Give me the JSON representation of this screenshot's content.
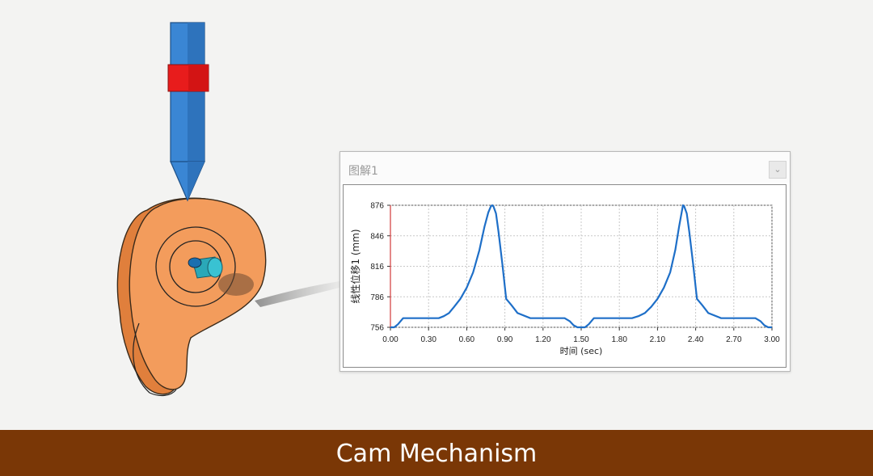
{
  "window": {
    "title": "图解1",
    "button_icon": "window-menu-icon"
  },
  "caption": {
    "text": "Cam Mechanism",
    "background": "#7a3706"
  },
  "colors": {
    "cam": "#f39c5c",
    "follower": "#3a86d4",
    "collar": "#e81c1c",
    "shaft": "#2aa8b8",
    "curve": "#1e6fc8"
  },
  "chart_data": {
    "type": "line",
    "title": "",
    "xlabel": "时间 (sec)",
    "ylabel": "线性位移1 (mm)",
    "xlim": [
      0,
      3
    ],
    "ylim": [
      756,
      876
    ],
    "xticks": [
      "0.00",
      "0.30",
      "0.60",
      "0.90",
      "1.20",
      "1.50",
      "1.80",
      "2.10",
      "2.40",
      "2.70",
      "3.00"
    ],
    "yticks": [
      "756",
      "786",
      "816",
      "846",
      "876"
    ],
    "grid": true,
    "series": [
      {
        "x": [
          0,
          0.03,
          0.06,
          0.1,
          0.15,
          0.2,
          0.3,
          0.38,
          0.42,
          0.46,
          0.5,
          0.55,
          0.6,
          0.65,
          0.7,
          0.74,
          0.77,
          0.79,
          0.8,
          0.81,
          0.83,
          0.85,
          0.88,
          0.91,
          0.95,
          1.0,
          1.1,
          1.2,
          1.3,
          1.37,
          1.41,
          1.44,
          1.47,
          1.5,
          1.53,
          1.56,
          1.6,
          1.65,
          1.8,
          1.9,
          1.95,
          2.0,
          2.05,
          2.1,
          2.15,
          2.2,
          2.24,
          2.27,
          2.29,
          2.3,
          2.31,
          2.33,
          2.35,
          2.38,
          2.41,
          2.45,
          2.5,
          2.6,
          2.7,
          2.8,
          2.87,
          2.91,
          2.94,
          2.97,
          3.0
        ],
        "y": [
          756,
          756,
          759,
          765,
          765,
          765,
          765,
          765,
          767,
          770,
          776,
          784,
          795,
          810,
          832,
          855,
          869,
          875,
          876,
          875,
          868,
          850,
          818,
          784,
          778,
          770,
          765,
          765,
          765,
          765,
          762,
          758,
          756,
          756,
          756,
          759,
          765,
          765,
          765,
          765,
          767,
          770,
          776,
          784,
          795,
          810,
          832,
          855,
          869,
          876,
          875,
          868,
          850,
          818,
          784,
          778,
          770,
          765,
          765,
          765,
          765,
          762,
          758,
          756,
          756
        ]
      }
    ]
  }
}
